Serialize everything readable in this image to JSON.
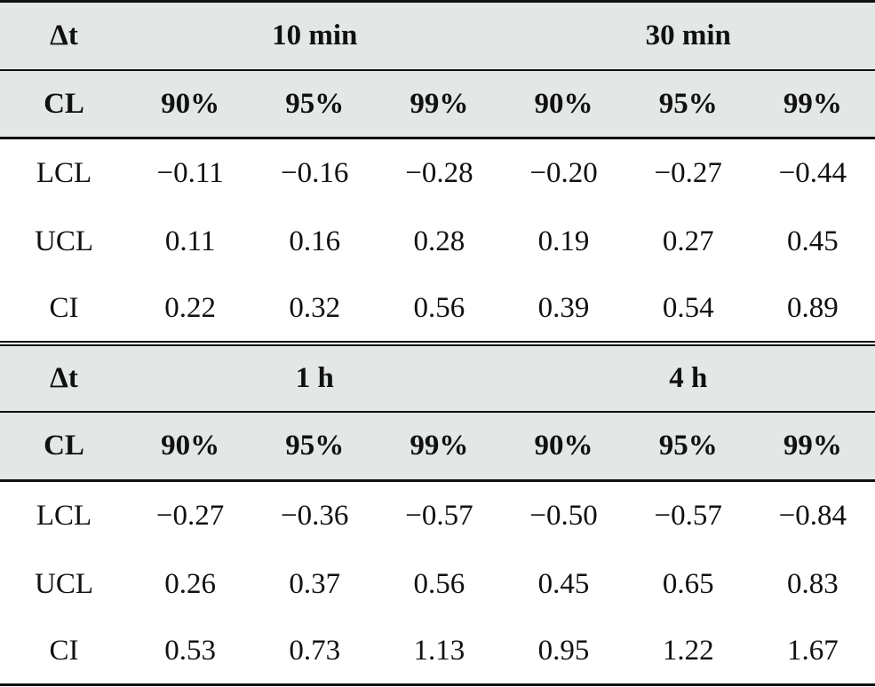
{
  "sections": [
    {
      "dt_label": "Δt",
      "dt_groups": [
        "10 min",
        "30 min"
      ],
      "cl_label": "CL",
      "cl_levels": [
        "90%",
        "95%",
        "99%",
        "90%",
        "95%",
        "99%"
      ],
      "rows": [
        {
          "label": "LCL",
          "values": [
            "−0.11",
            "−0.16",
            "−0.28",
            "−0.20",
            "−0.27",
            "−0.44"
          ]
        },
        {
          "label": "UCL",
          "values": [
            "0.11",
            "0.16",
            "0.28",
            "0.19",
            "0.27",
            "0.45"
          ]
        },
        {
          "label": "CI",
          "values": [
            "0.22",
            "0.32",
            "0.56",
            "0.39",
            "0.54",
            "0.89"
          ]
        }
      ]
    },
    {
      "dt_label": "Δt",
      "dt_groups": [
        "1 h",
        "4 h"
      ],
      "cl_label": "CL",
      "cl_levels": [
        "90%",
        "95%",
        "99%",
        "90%",
        "95%",
        "99%"
      ],
      "rows": [
        {
          "label": "LCL",
          "values": [
            "−0.27",
            "−0.36",
            "−0.57",
            "−0.50",
            "−0.57",
            "−0.84"
          ]
        },
        {
          "label": "UCL",
          "values": [
            "0.26",
            "0.37",
            "0.56",
            "0.45",
            "0.65",
            "0.83"
          ]
        },
        {
          "label": "CI",
          "values": [
            "0.53",
            "0.73",
            "1.13",
            "0.95",
            "1.22",
            "1.67"
          ]
        }
      ]
    }
  ]
}
